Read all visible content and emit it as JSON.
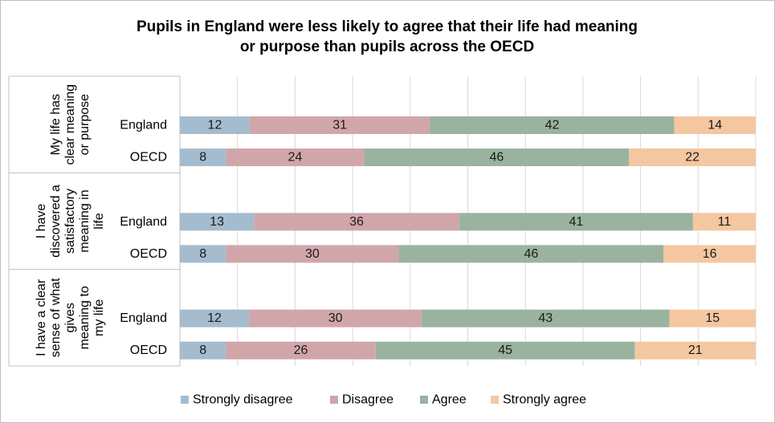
{
  "chart_data": {
    "type": "bar",
    "orientation": "horizontal",
    "stacked": "percent",
    "title": "Pupils in England were less likely to agree that their life had meaning or purpose than pupils across the OECD",
    "title_lines": [
      "Pupils in England were less likely to agree that their life had meaning",
      "or purpose than pupils across the OECD"
    ],
    "xlim": [
      0,
      100
    ],
    "grid": true,
    "legend": "bottom",
    "groups": [
      {
        "label": "My life has clear meaning or purpose",
        "label_lines": [
          "My life has",
          "clear meaning",
          "or purpose"
        ],
        "rows": [
          {
            "category": "England",
            "values": [
              12,
              31,
              42,
              14
            ]
          },
          {
            "category": "OECD",
            "values": [
              8,
              24,
              46,
              22
            ]
          }
        ]
      },
      {
        "label": "I have discovered a satisfactory meaning in life",
        "label_lines": [
          "I have",
          "discovered a",
          "satisfactory",
          "meaning in",
          "life"
        ],
        "rows": [
          {
            "category": "England",
            "values": [
              13,
              36,
              41,
              11
            ]
          },
          {
            "category": "OECD",
            "values": [
              8,
              30,
              46,
              16
            ]
          }
        ]
      },
      {
        "label": "I have a clear sense of what gives meaning to my life",
        "label_lines": [
          "I have a clear",
          "sense of what",
          "gives",
          "meaning to",
          "my life"
        ],
        "rows": [
          {
            "category": "England",
            "values": [
              12,
              30,
              43,
              15
            ]
          },
          {
            "category": "OECD",
            "values": [
              8,
              26,
              45,
              21
            ]
          }
        ]
      }
    ],
    "series": [
      {
        "name": "Strongly disagree",
        "color": "#a5bccf"
      },
      {
        "name": "Disagree",
        "color": "#d1a6aa"
      },
      {
        "name": "Agree",
        "color": "#9ab39e"
      },
      {
        "name": "Strongly agree",
        "color": "#f5c7a1"
      }
    ]
  }
}
